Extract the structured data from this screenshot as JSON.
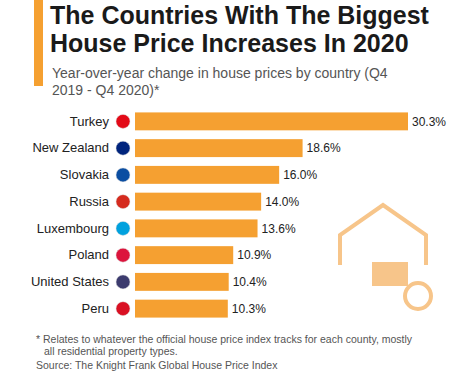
{
  "chart_data": {
    "type": "bar",
    "title": "The Countries With The Biggest House Price Increases In 2020",
    "subtitle": "Year-over-year change in house prices by country (Q4 2019 - Q4 2020)*",
    "categories": [
      "Turkey",
      "New Zealand",
      "Slovakia",
      "Russia",
      "Luxembourg",
      "Poland",
      "United States",
      "Peru"
    ],
    "values": [
      30.3,
      18.6,
      16.0,
      14.0,
      13.6,
      10.9,
      10.4,
      10.3
    ],
    "value_labels": [
      "30.3%",
      "18.6%",
      "16.0%",
      "14.0%",
      "13.6%",
      "10.9%",
      "10.4%",
      "10.3%"
    ],
    "color": "#f5a031",
    "orientation": "horizontal",
    "data_labels": true,
    "tick_labels": "y",
    "footnote": "* Relates to whatever the official house price index tracks for each county, mostly all residential property types.",
    "source": "Source: The Knight Frank Global House Price Index"
  }
}
